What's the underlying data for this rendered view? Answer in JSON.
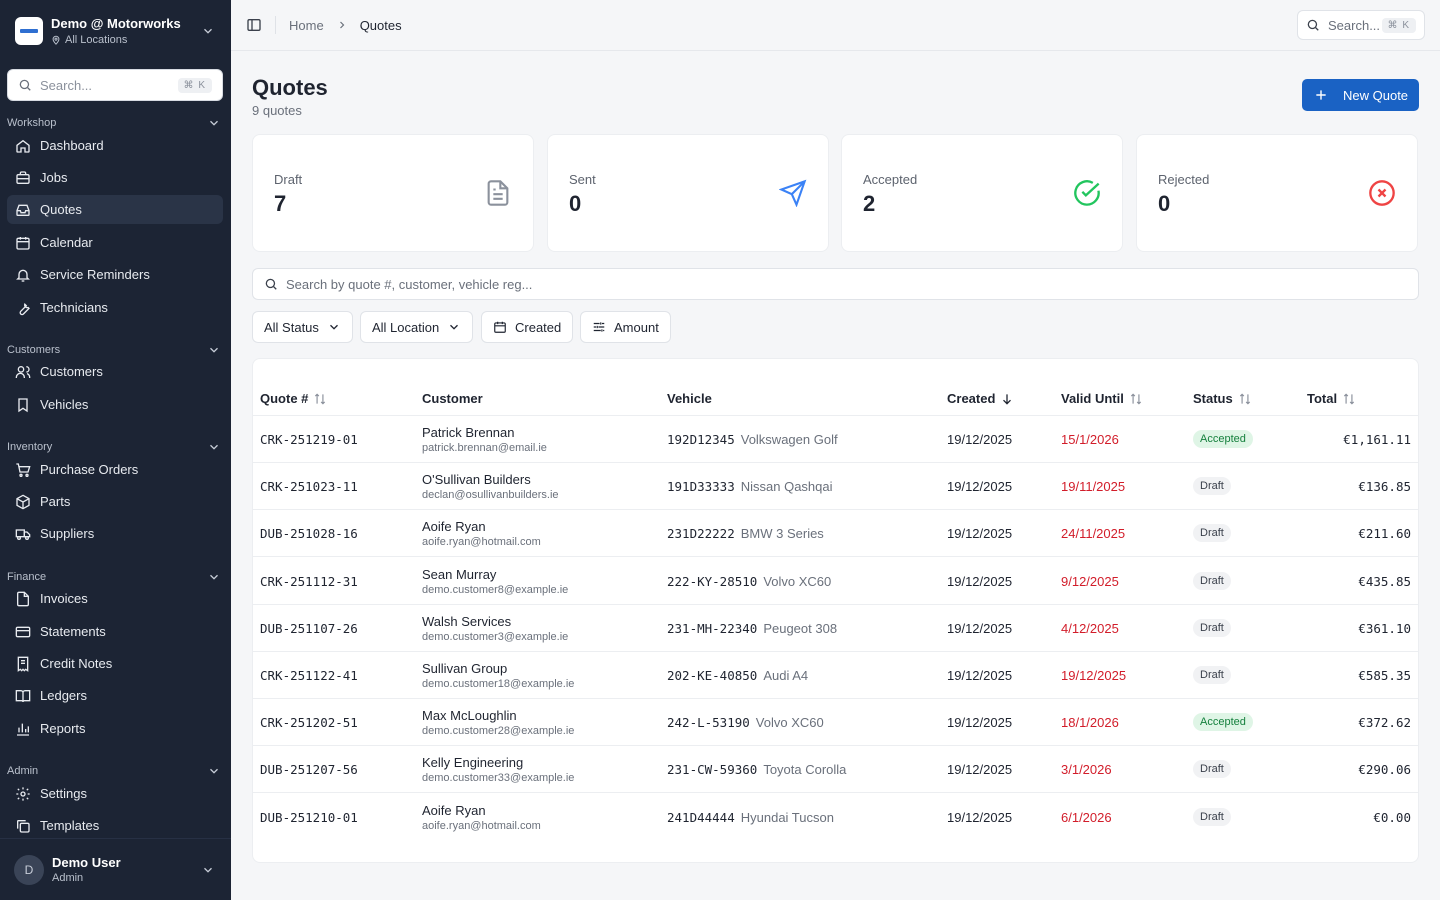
{
  "org": {
    "name": "Demo @ Motorworks",
    "location": "All Locations"
  },
  "sidebar": {
    "search_placeholder": "Search...",
    "search_shortcut": "⌘ K",
    "groups": [
      {
        "label": "Workshop",
        "items": [
          {
            "label": "Dashboard",
            "icon": "home-icon"
          },
          {
            "label": "Jobs",
            "icon": "briefcase-icon"
          },
          {
            "label": "Quotes",
            "icon": "inbox-icon",
            "active": true
          },
          {
            "label": "Calendar",
            "icon": "calendar-icon"
          },
          {
            "label": "Service Reminders",
            "icon": "bell-icon"
          },
          {
            "label": "Technicians",
            "icon": "wrench-icon"
          }
        ]
      },
      {
        "label": "Customers",
        "items": [
          {
            "label": "Customers",
            "icon": "users-icon"
          },
          {
            "label": "Vehicles",
            "icon": "vehicle-icon"
          }
        ]
      },
      {
        "label": "Inventory",
        "items": [
          {
            "label": "Purchase Orders",
            "icon": "cart-icon"
          },
          {
            "label": "Parts",
            "icon": "box-icon"
          },
          {
            "label": "Suppliers",
            "icon": "truck-icon"
          }
        ]
      },
      {
        "label": "Finance",
        "items": [
          {
            "label": "Invoices",
            "icon": "file-icon"
          },
          {
            "label": "Statements",
            "icon": "card-icon"
          },
          {
            "label": "Credit Notes",
            "icon": "receipt-icon"
          },
          {
            "label": "Ledgers",
            "icon": "book-icon"
          },
          {
            "label": "Reports",
            "icon": "bar-chart-icon"
          }
        ]
      },
      {
        "label": "Admin",
        "items": [
          {
            "label": "Settings",
            "icon": "gear-icon"
          },
          {
            "label": "Templates",
            "icon": "copy-icon"
          }
        ]
      }
    ]
  },
  "user": {
    "initial": "D",
    "name": "Demo User",
    "role": "Admin"
  },
  "topbar": {
    "breadcrumb_home": "Home",
    "breadcrumb_current": "Quotes",
    "search_placeholder": "Search...",
    "search_shortcut": "⌘ K"
  },
  "page": {
    "title": "Quotes",
    "subtitle": "9 quotes",
    "new_button": "New Quote"
  },
  "stats": [
    {
      "label": "Draft",
      "value": "7",
      "icon": "document-icon",
      "color": "#8b919c"
    },
    {
      "label": "Sent",
      "value": "0",
      "icon": "send-icon",
      "color": "#3b82f6"
    },
    {
      "label": "Accepted",
      "value": "2",
      "icon": "check-circle-icon",
      "color": "#22c55e"
    },
    {
      "label": "Rejected",
      "value": "0",
      "icon": "x-circle-icon",
      "color": "#ef4444"
    }
  ],
  "table_search_placeholder": "Search by quote #, customer, vehicle reg...",
  "filters": {
    "status": "All Status",
    "location": "All Location",
    "created": "Created",
    "amount": "Amount"
  },
  "table": {
    "headers": {
      "quote": "Quote #",
      "customer": "Customer",
      "vehicle": "Vehicle",
      "created": "Created",
      "valid_until": "Valid Until",
      "status": "Status",
      "total": "Total"
    },
    "rows": [
      {
        "quote": "CRK-251219-01",
        "customer": "Patrick Brennan",
        "email": "patrick.brennan@email.ie",
        "reg": "192D12345",
        "model": "Volkswagen Golf",
        "created": "19/12/2025",
        "valid_until": "15/1/2026",
        "status": "Accepted",
        "total": "€1,161.11"
      },
      {
        "quote": "CRK-251023-11",
        "customer": "O'Sullivan Builders",
        "email": "declan@osullivanbuilders.ie",
        "reg": "191D33333",
        "model": "Nissan Qashqai",
        "created": "19/12/2025",
        "valid_until": "19/11/2025",
        "status": "Draft",
        "total": "€136.85"
      },
      {
        "quote": "DUB-251028-16",
        "customer": "Aoife Ryan",
        "email": "aoife.ryan@hotmail.com",
        "reg": "231D22222",
        "model": "BMW 3 Series",
        "created": "19/12/2025",
        "valid_until": "24/11/2025",
        "status": "Draft",
        "total": "€211.60"
      },
      {
        "quote": "CRK-251112-31",
        "customer": "Sean Murray",
        "email": "demo.customer8@example.ie",
        "reg": "222-KY-28510",
        "model": "Volvo XC60",
        "created": "19/12/2025",
        "valid_until": "9/12/2025",
        "status": "Draft",
        "total": "€435.85"
      },
      {
        "quote": "DUB-251107-26",
        "customer": "Walsh Services",
        "email": "demo.customer3@example.ie",
        "reg": "231-MH-22340",
        "model": "Peugeot 308",
        "created": "19/12/2025",
        "valid_until": "4/12/2025",
        "status": "Draft",
        "total": "€361.10"
      },
      {
        "quote": "CRK-251122-41",
        "customer": "Sullivan Group",
        "email": "demo.customer18@example.ie",
        "reg": "202-KE-40850",
        "model": "Audi A4",
        "created": "19/12/2025",
        "valid_until": "19/12/2025",
        "status": "Draft",
        "total": "€585.35"
      },
      {
        "quote": "CRK-251202-51",
        "customer": "Max McLoughlin",
        "email": "demo.customer28@example.ie",
        "reg": "242-L-53190",
        "model": "Volvo XC60",
        "created": "19/12/2025",
        "valid_until": "18/1/2026",
        "status": "Accepted",
        "total": "€372.62"
      },
      {
        "quote": "DUB-251207-56",
        "customer": "Kelly Engineering",
        "email": "demo.customer33@example.ie",
        "reg": "231-CW-59360",
        "model": "Toyota Corolla",
        "created": "19/12/2025",
        "valid_until": "3/1/2026",
        "status": "Draft",
        "total": "€290.06"
      },
      {
        "quote": "DUB-251210-01",
        "customer": "Aoife Ryan",
        "email": "aoife.ryan@hotmail.com",
        "reg": "241D44444",
        "model": "Hyundai Tucson",
        "created": "19/12/2025",
        "valid_until": "6/1/2026",
        "status": "Draft",
        "total": "€0.00"
      }
    ]
  }
}
